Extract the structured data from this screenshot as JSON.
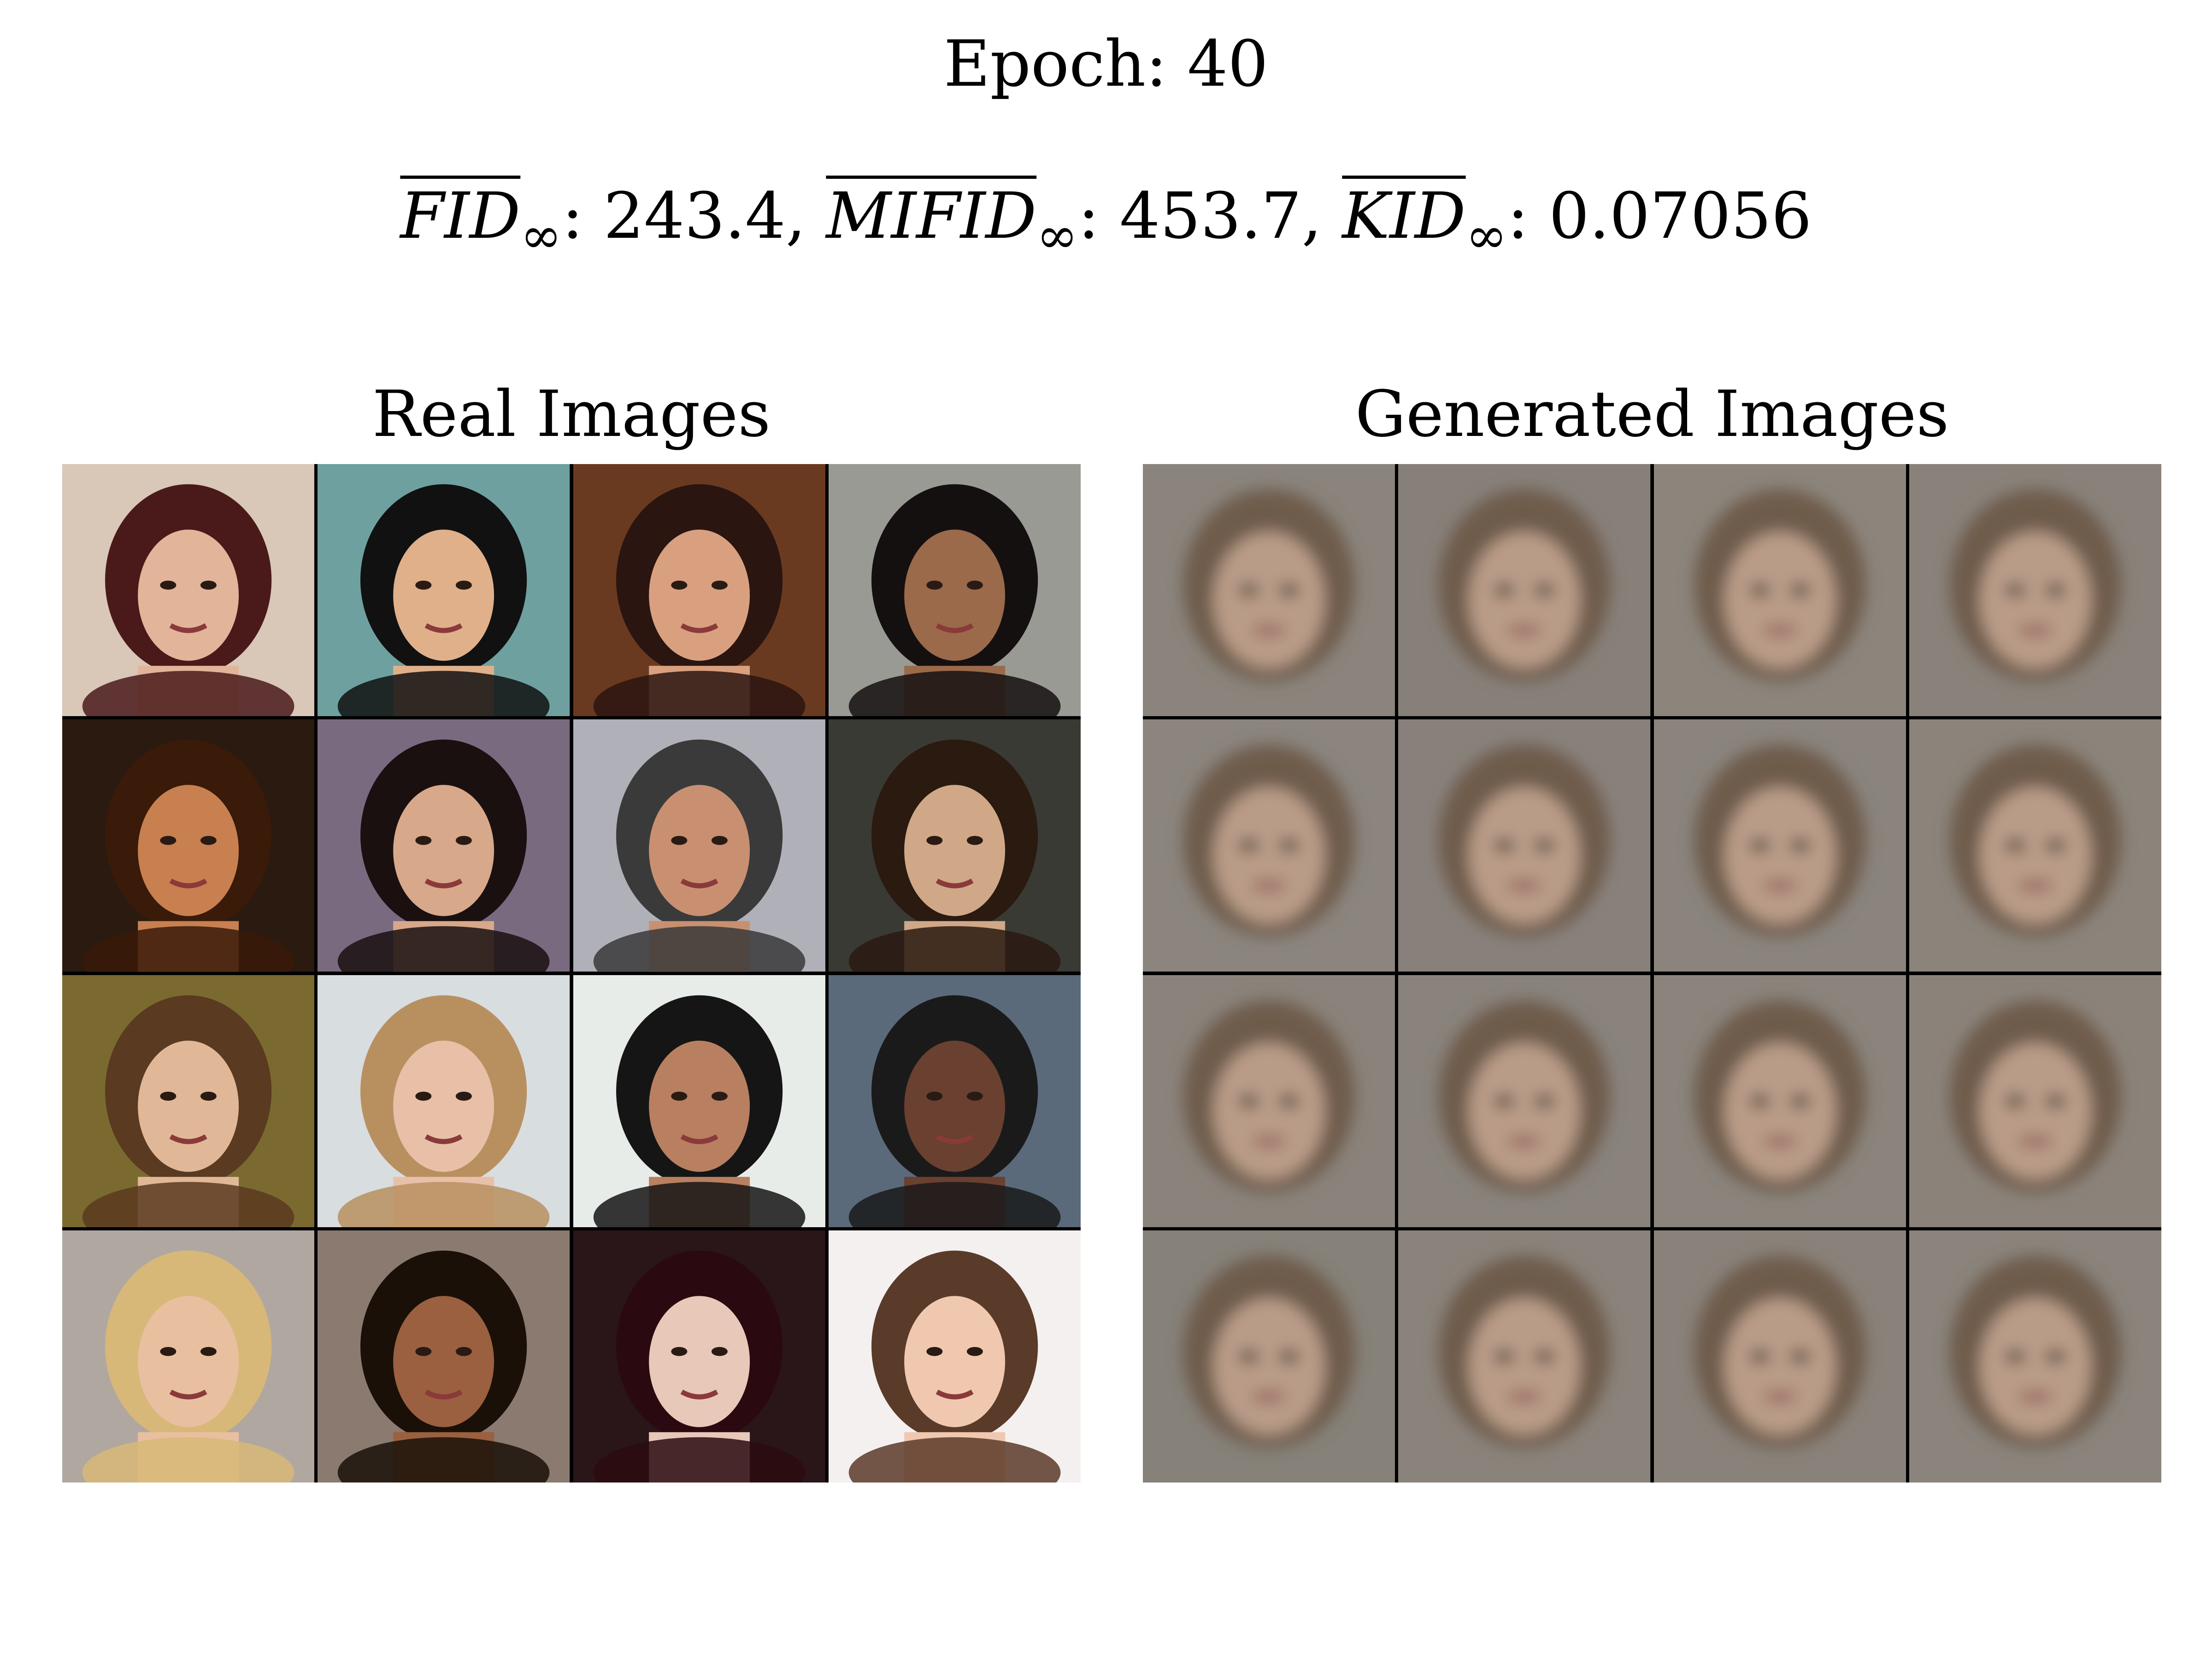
{
  "header": {
    "epoch_text": "Epoch: 40",
    "metrics": [
      {
        "name": "FID",
        "sub": "∞",
        "value": "243.4"
      },
      {
        "name": "MIFID",
        "sub": "∞",
        "value": "453.7"
      },
      {
        "name": "KID",
        "sub": "∞",
        "value": "0.07056"
      }
    ]
  },
  "panels": {
    "real_title": "Real Images",
    "generated_title": "Generated Images"
  },
  "real_images": [
    {
      "bg": "#d9c7b8",
      "skin": "#e2b49a",
      "hair": "#4a1a1a"
    },
    {
      "bg": "#6fa0a0",
      "skin": "#e0b08a",
      "hair": "#111111"
    },
    {
      "bg": "#6a3a20",
      "skin": "#d9a080",
      "hair": "#2a1510"
    },
    {
      "bg": "#9a9a95",
      "skin": "#9a6a4a",
      "hair": "#151010"
    },
    {
      "bg": "#2a1a10",
      "skin": "#c88050",
      "hair": "#3a1a08"
    },
    {
      "bg": "#7a6a80",
      "skin": "#d8a88a",
      "hair": "#1a1010"
    },
    {
      "bg": "#b0b0b8",
      "skin": "#c89070",
      "hair": "#3a3a3a"
    },
    {
      "bg": "#3a3a35",
      "skin": "#d0a888",
      "hair": "#2a1a10"
    },
    {
      "bg": "#7a6a30",
      "skin": "#e0b898",
      "hair": "#5a3a20"
    },
    {
      "bg": "#d8dde0",
      "skin": "#e8c0a8",
      "hair": "#b89060"
    },
    {
      "bg": "#e8ece8",
      "skin": "#b88060",
      "hair": "#151515"
    },
    {
      "bg": "#5a6a7a",
      "skin": "#6a4030",
      "hair": "#1a1a1a"
    },
    {
      "bg": "#b0a8a0",
      "skin": "#e8c0a0",
      "hair": "#d8b878"
    },
    {
      "bg": "#8a7a70",
      "skin": "#9a6040",
      "hair": "#1a1008"
    },
    {
      "bg": "#2a1518",
      "skin": "#e8c8b8",
      "hair": "#2a0a10"
    },
    {
      "bg": "#f4f0f0",
      "skin": "#f0c8b0",
      "hair": "#5a3a28"
    }
  ],
  "generated_images": [
    {
      "bg": "#8a847c"
    },
    {
      "bg": "#878079"
    },
    {
      "bg": "#8c857c"
    },
    {
      "bg": "#89827a"
    },
    {
      "bg": "#8b857e"
    },
    {
      "bg": "#88817b"
    },
    {
      "bg": "#8a847d"
    },
    {
      "bg": "#8b847b"
    },
    {
      "bg": "#8a837b"
    },
    {
      "bg": "#89837c"
    },
    {
      "bg": "#8a847c"
    },
    {
      "bg": "#8b837a"
    },
    {
      "bg": "#868179"
    },
    {
      "bg": "#8a837b"
    },
    {
      "bg": "#89827a"
    },
    {
      "bg": "#8a847c"
    }
  ]
}
